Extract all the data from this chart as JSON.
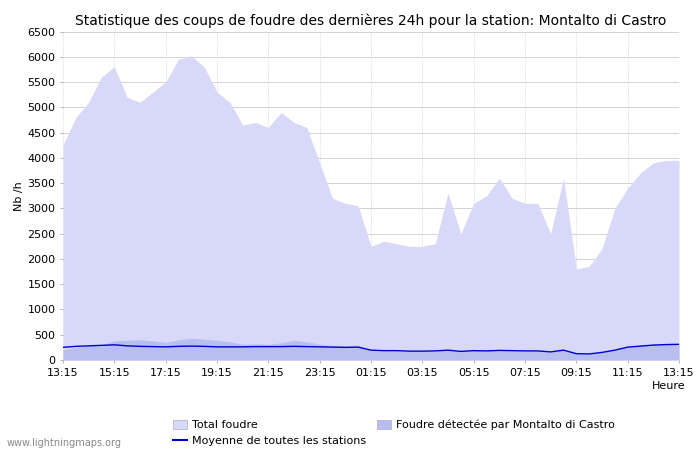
{
  "title": "Statistique des coups de foudre des dernières 24h pour la station: Montalto di Castro",
  "xlabel": "Heure",
  "ylabel": "Nb /h",
  "watermark": "www.lightningmaps.org",
  "xlim": [
    0,
    48
  ],
  "ylim": [
    0,
    6500
  ],
  "yticks": [
    0,
    500,
    1000,
    1500,
    2000,
    2500,
    3000,
    3500,
    4000,
    4500,
    5000,
    5500,
    6000,
    6500
  ],
  "xtick_labels": [
    "13:15",
    "15:15",
    "17:15",
    "19:15",
    "21:15",
    "23:15",
    "01:15",
    "03:15",
    "05:15",
    "07:15",
    "09:15",
    "11:15",
    "13:15"
  ],
  "xtick_positions": [
    0,
    4,
    8,
    12,
    16,
    20,
    24,
    28,
    32,
    36,
    40,
    44,
    48
  ],
  "bg_color": "#ffffff",
  "grid_color": "#cccccc",
  "fill_total_color": "#d8d8f8",
  "fill_station_color": "#b8bef0",
  "line_mean_color": "#0000cc",
  "total_foudre": [
    4250,
    4800,
    5100,
    5600,
    5800,
    5200,
    5100,
    5300,
    5500,
    5950,
    6020,
    5800,
    5300,
    5100,
    4650,
    4700,
    4600,
    4900,
    4700,
    4600,
    3900,
    3200,
    3100,
    3050,
    2250,
    2350,
    2300,
    2250,
    2250,
    2300,
    3300,
    2500,
    3100,
    3250,
    3600,
    3200,
    3100,
    3100,
    2500,
    3600,
    1800,
    1850,
    2200,
    3000,
    3400,
    3700,
    3900,
    3950,
    3950
  ],
  "station_foudre": [
    200,
    250,
    280,
    300,
    380,
    390,
    400,
    380,
    350,
    400,
    430,
    410,
    390,
    360,
    310,
    320,
    310,
    340,
    390,
    360,
    310,
    290,
    280,
    290,
    190,
    180,
    175,
    165,
    170,
    175,
    200,
    165,
    190,
    185,
    190,
    180,
    175,
    180,
    155,
    200,
    120,
    115,
    150,
    200,
    260,
    290,
    310,
    330,
    330
  ],
  "mean_line": [
    250,
    270,
    280,
    290,
    300,
    280,
    270,
    265,
    260,
    270,
    275,
    270,
    260,
    260,
    260,
    265,
    265,
    265,
    270,
    265,
    260,
    255,
    250,
    255,
    195,
    185,
    185,
    175,
    175,
    180,
    195,
    170,
    185,
    180,
    190,
    185,
    180,
    180,
    160,
    195,
    125,
    120,
    150,
    195,
    255,
    275,
    295,
    305,
    310
  ],
  "legend_total_label": "Total foudre",
  "legend_station_label": "Foudre détectée par Montalto di Castro",
  "legend_mean_label": "Moyenne de toutes les stations",
  "title_fontsize": 10,
  "axis_fontsize": 8,
  "tick_fontsize": 8,
  "watermark_fontsize": 7,
  "legend_fontsize": 8
}
